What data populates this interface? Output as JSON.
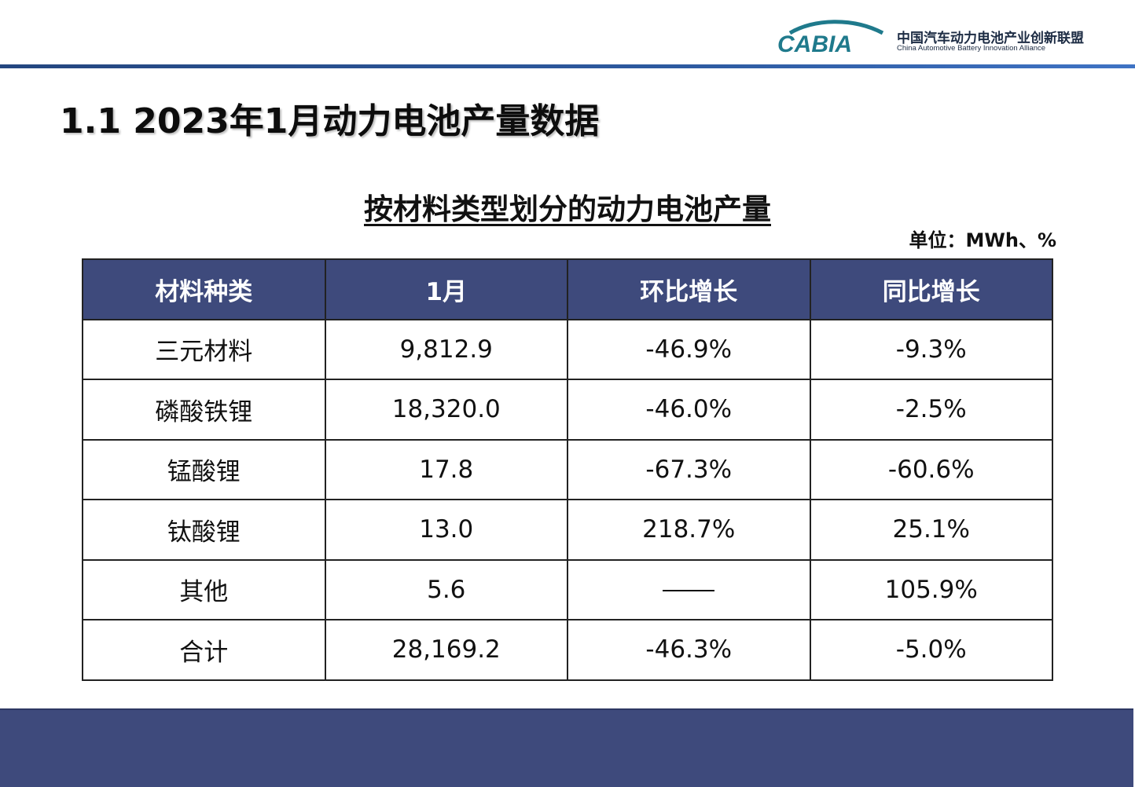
{
  "logo": {
    "mark_text": "CABIA",
    "cn_name": "中国汽车动力电池产业创新联盟",
    "en_name": "China Automotive Battery Innovation Alliance",
    "color": "#1f7a8c"
  },
  "page_title": "1.1  2023年1月动力电池产量数据",
  "table_title": "按材料类型划分的动力电池产量",
  "unit": "单位：MWh、%",
  "table": {
    "headers": [
      "材料种类",
      "1月",
      "环比增长",
      "同比增长"
    ],
    "rows": [
      [
        "三元材料",
        "9,812.9",
        "-46.9%",
        "-9.3%"
      ],
      [
        "磷酸铁锂",
        "18,320.0",
        "-46.0%",
        "-2.5%"
      ],
      [
        "锰酸锂",
        "17.8",
        "-67.3%",
        "-60.6%"
      ],
      [
        "钛酸锂",
        "13.0",
        "218.7%",
        "25.1%"
      ],
      [
        "其他",
        "5.6",
        "",
        "105.9%"
      ],
      [
        "合计",
        "28,169.2",
        "-46.3%",
        "-5.0%"
      ]
    ]
  },
  "colors": {
    "header_bg": "#3e4a7c",
    "footer_bg": "#3e4a7c",
    "accent_line": "#2d5aa0"
  }
}
